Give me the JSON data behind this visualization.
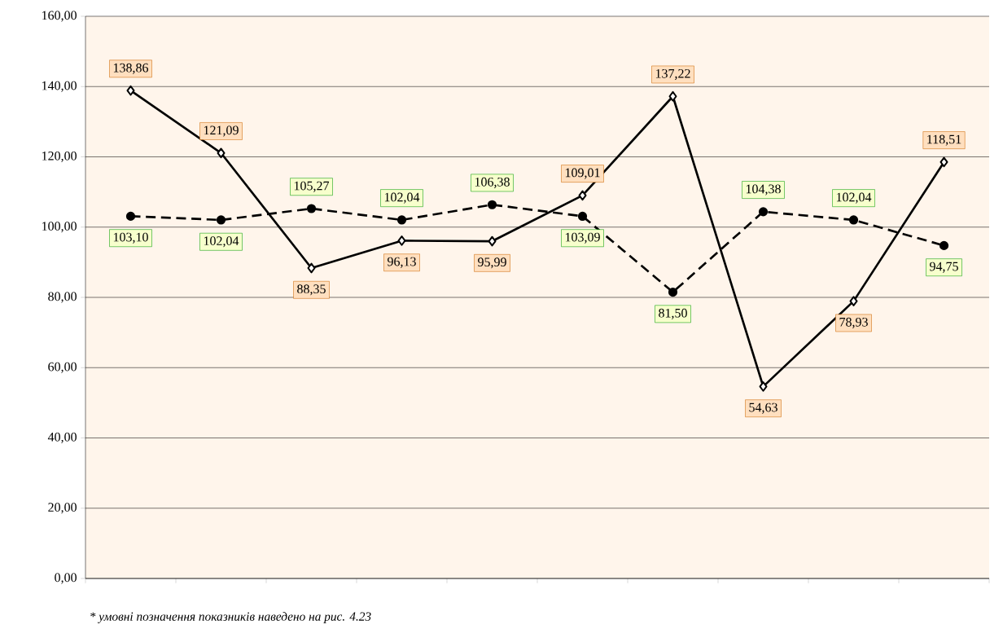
{
  "chart_data": {
    "type": "line",
    "categories": [
      null,
      null,
      null,
      null,
      null,
      null,
      null,
      null,
      null,
      null
    ],
    "series": [
      {
        "color": "#000000",
        "marker": "diamond",
        "line_style": "solid",
        "values": [
          138.86,
          121.09,
          88.35,
          96.13,
          95.99,
          109.01,
          137.22,
          54.63,
          78.93,
          118.51
        ],
        "value_labels": [
          "138,86",
          "121,09",
          "88,35",
          "96,13",
          "95,99",
          "109,01",
          "137,22",
          "54,63",
          "78,93",
          "118,51"
        ]
      },
      {
        "color": "#000000",
        "marker": "circle",
        "line_style": "dashed",
        "values": [
          103.1,
          102.04,
          105.27,
          102.04,
          106.38,
          103.09,
          81.5,
          104.38,
          102.04,
          94.75
        ],
        "value_labels": [
          "103,10",
          "102,04",
          "105,27",
          "102,04",
          "106,38",
          "103,09",
          "81,50",
          "104,38",
          "102,04",
          "94,75"
        ]
      }
    ],
    "ylim": [
      0,
      160
    ],
    "yticks": [
      {
        "value": 0,
        "label": "0,00"
      },
      {
        "value": 20,
        "label": "20,00"
      },
      {
        "value": 40,
        "label": "40,00"
      },
      {
        "value": 60,
        "label": "60,00"
      },
      {
        "value": 80,
        "label": "80,00"
      },
      {
        "value": 100,
        "label": "100,00"
      },
      {
        "value": 120,
        "label": "120,00"
      },
      {
        "value": 140,
        "label": "140,00"
      },
      {
        "value": 160,
        "label": "160,00"
      }
    ],
    "grid": "y",
    "annotations": [
      "* умовні позначення показників наведено на рис. 4.23"
    ]
  }
}
